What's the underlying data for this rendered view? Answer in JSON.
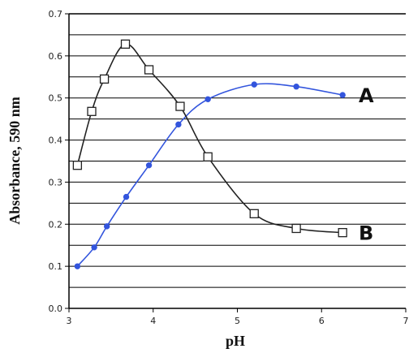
{
  "chart_data": {
    "type": "line",
    "xlabel": "pH",
    "ylabel": "Absorbance, 590 nm",
    "xlim": [
      3,
      7
    ],
    "ylim": [
      0,
      0.7
    ],
    "x_ticks": [
      "3",
      "4",
      "5",
      "6",
      "7"
    ],
    "y_ticks": [
      "0.0",
      "0.1",
      "0.2",
      "0.3",
      "0.4",
      "0.5",
      "0.6",
      "0.7"
    ],
    "grid": "horizontal",
    "series": [
      {
        "name": "A",
        "color": "#3355dd",
        "marker": "filled-circle",
        "x": [
          3.1,
          3.3,
          3.45,
          3.68,
          3.95,
          4.3,
          4.65,
          5.2,
          5.7,
          6.25
        ],
        "y": [
          0.1,
          0.145,
          0.195,
          0.265,
          0.34,
          0.437,
          0.497,
          0.532,
          0.527,
          0.507
        ]
      },
      {
        "name": "B",
        "color": "#222222",
        "marker": "open-square",
        "x": [
          3.1,
          3.27,
          3.42,
          3.67,
          3.95,
          4.32,
          4.65,
          5.2,
          5.7,
          6.25
        ],
        "y": [
          0.34,
          0.468,
          0.545,
          0.628,
          0.567,
          0.48,
          0.36,
          0.225,
          0.19,
          0.18
        ]
      }
    ]
  }
}
